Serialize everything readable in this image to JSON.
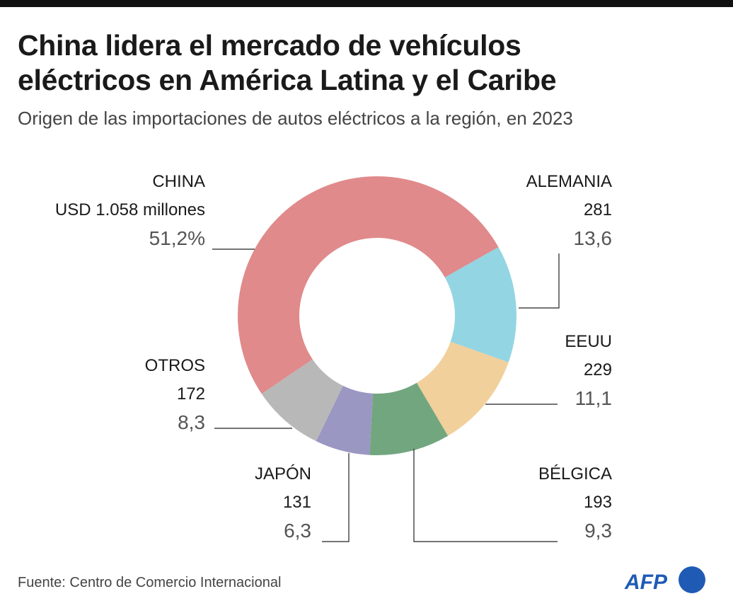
{
  "title": "China lidera el mercado de vehículos eléctricos en América Latina y el Caribe",
  "title_lines": [
    "China lidera el mercado de vehículos",
    "eléctricos en América Latina y el Caribe"
  ],
  "subtitle": "Origen de las importaciones de autos eléctricos a la región, en 2023",
  "source": "Fuente: Centro de Comercio Internacional",
  "logo": "AFP",
  "chart_data": {
    "type": "pie",
    "variant": "donut",
    "unit": "USD millones",
    "segments": [
      {
        "name": "ALEMANIA",
        "value_label": "281",
        "value": 281,
        "percent_label": "13,6",
        "percent": 13.6,
        "color": "#93d5e3"
      },
      {
        "name": "EEUU",
        "value_label": "229",
        "value": 229,
        "percent_label": "11,1",
        "percent": 11.1,
        "color": "#f1d09b"
      },
      {
        "name": "BÉLGICA",
        "value_label": "193",
        "value": 193,
        "percent_label": "9,3",
        "percent": 9.3,
        "color": "#72a67f"
      },
      {
        "name": "JAPÓN",
        "value_label": "131",
        "value": 131,
        "percent_label": "6,3",
        "percent": 6.3,
        "color": "#9a97c3"
      },
      {
        "name": "OTROS",
        "value_label": "172",
        "value": 172,
        "percent_label": "8,3",
        "percent": 8.3,
        "color": "#b8b8b8"
      },
      {
        "name": "CHINA",
        "value_label": "USD 1.058 millones",
        "value": 1058,
        "percent_label": "51,2%",
        "percent": 51.2,
        "color": "#e08a8b"
      }
    ]
  }
}
